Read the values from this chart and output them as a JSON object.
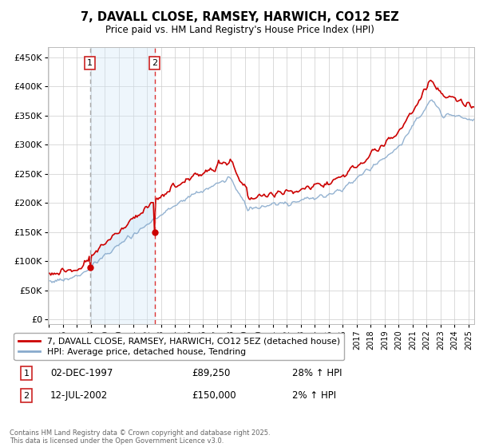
{
  "title": "7, DAVALL CLOSE, RAMSEY, HARWICH, CO12 5EZ",
  "subtitle": "Price paid vs. HM Land Registry's House Price Index (HPI)",
  "yticks": [
    0,
    50000,
    100000,
    150000,
    200000,
    250000,
    300000,
    350000,
    400000,
    450000
  ],
  "ytick_labels": [
    "£0",
    "£50K",
    "£100K",
    "£150K",
    "£200K",
    "£250K",
    "£300K",
    "£350K",
    "£400K",
    "£450K"
  ],
  "ylim": [
    -8000,
    468000
  ],
  "sale1_t": 1997.9167,
  "sale1_price": 89250,
  "sale2_t": 2002.5417,
  "sale2_price": 150000,
  "line_color_property": "#cc0000",
  "line_color_hpi": "#88aacc",
  "shade_color": "#d0e8f8",
  "vline1_color": "#aaaaaa",
  "vline2_color": "#dd3333",
  "marker_color": "#cc0000",
  "legend_label_property": "7, DAVALL CLOSE, RAMSEY, HARWICH, CO12 5EZ (detached house)",
  "legend_label_hpi": "HPI: Average price, detached house, Tendring",
  "sale1_date_str": "02-DEC-1997",
  "sale1_price_str": "£89,250",
  "sale1_hpi_str": "28% ↑ HPI",
  "sale2_date_str": "12-JUL-2002",
  "sale2_price_str": "£150,000",
  "sale2_hpi_str": "2% ↑ HPI",
  "copyright_text": "Contains HM Land Registry data © Crown copyright and database right 2025.\nThis data is licensed under the Open Government Licence v3.0.",
  "background_color": "#ffffff",
  "grid_color": "#cccccc",
  "xtick_years": [
    1995,
    1996,
    1997,
    1998,
    1999,
    2000,
    2001,
    2002,
    2003,
    2004,
    2005,
    2006,
    2007,
    2008,
    2009,
    2010,
    2011,
    2012,
    2013,
    2014,
    2015,
    2016,
    2017,
    2018,
    2019,
    2020,
    2021,
    2022,
    2023,
    2024,
    2025
  ]
}
